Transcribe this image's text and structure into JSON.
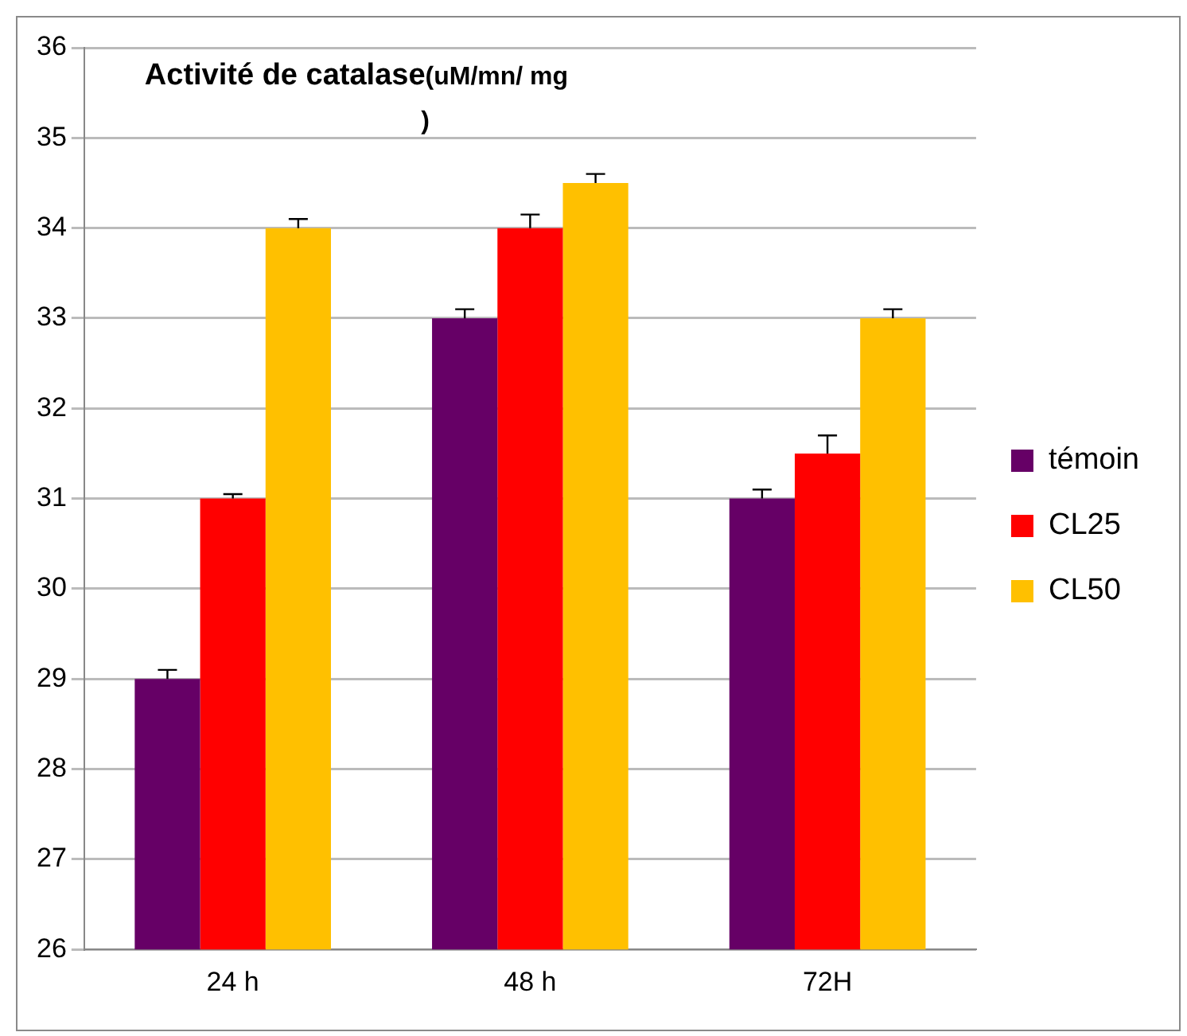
{
  "chart_data": {
    "type": "bar",
    "title": "Activité de catalase(uM/mn/ mg )",
    "categories": [
      "24 h",
      "48 h",
      "72H"
    ],
    "series": [
      {
        "name": "témoin",
        "color": "#660066",
        "values": [
          29,
          33,
          31
        ],
        "errors": [
          [
            29,
            29.1
          ],
          [
            33,
            33.1
          ],
          [
            31,
            31.1
          ]
        ]
      },
      {
        "name": "CL25",
        "color": "#ff0000",
        "values": [
          31,
          34,
          31.5
        ],
        "errors": [
          [
            31,
            31.05
          ],
          [
            34,
            34.15
          ],
          [
            31.5,
            31.7
          ]
        ]
      },
      {
        "name": "CL50",
        "color": "#ffc000",
        "values": [
          34,
          34.5,
          33
        ],
        "errors": [
          [
            34,
            34.1
          ],
          [
            34.5,
            34.6
          ],
          [
            33,
            33.1
          ]
        ]
      }
    ],
    "ylim": [
      26,
      36
    ],
    "yticks": [
      26,
      27,
      28,
      29,
      30,
      31,
      32,
      33,
      34,
      35,
      36
    ],
    "grid": "y",
    "legend": "right"
  }
}
